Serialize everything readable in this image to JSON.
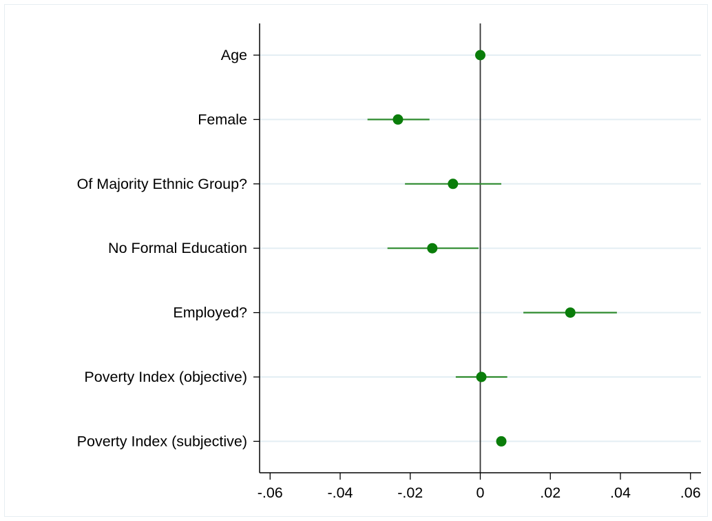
{
  "chart_data": {
    "type": "scatter",
    "subtype": "coefficient-plot",
    "title": "",
    "xlabel": "",
    "ylabel": "",
    "xlim": [
      -0.063,
      0.063
    ],
    "x_ticks": [
      -0.06,
      -0.04,
      -0.02,
      0,
      0.02,
      0.04,
      0.06
    ],
    "x_tick_labels": [
      "-.06",
      "-.04",
      "-.02",
      "0",
      ".02",
      ".04",
      ".06"
    ],
    "reference_line_x": 0,
    "grid": "horizontal",
    "legend": "none",
    "colors": {
      "marker": "#0a7d0a",
      "ci": "#2e8b2e",
      "grid": "#e3eef3",
      "axis": "#000000",
      "ref_line": "#333333"
    },
    "categories": [
      "Age",
      "Female",
      "Of Majority Ethnic Group?",
      "No Formal Education",
      "Employed?",
      "Poverty Index (objective)",
      "Poverty Index (subjective)"
    ],
    "series": [
      {
        "estimates": [
          0.0,
          -0.0235,
          -0.0078,
          -0.0137,
          0.0257,
          0.0003,
          0.006
        ],
        "ci_low": [
          -0.0003,
          -0.0322,
          -0.0215,
          -0.0265,
          0.0123,
          -0.007,
          0.0052
        ],
        "ci_high": [
          0.0003,
          -0.0145,
          0.006,
          -0.0005,
          0.039,
          0.0077,
          0.0072
        ]
      }
    ]
  }
}
